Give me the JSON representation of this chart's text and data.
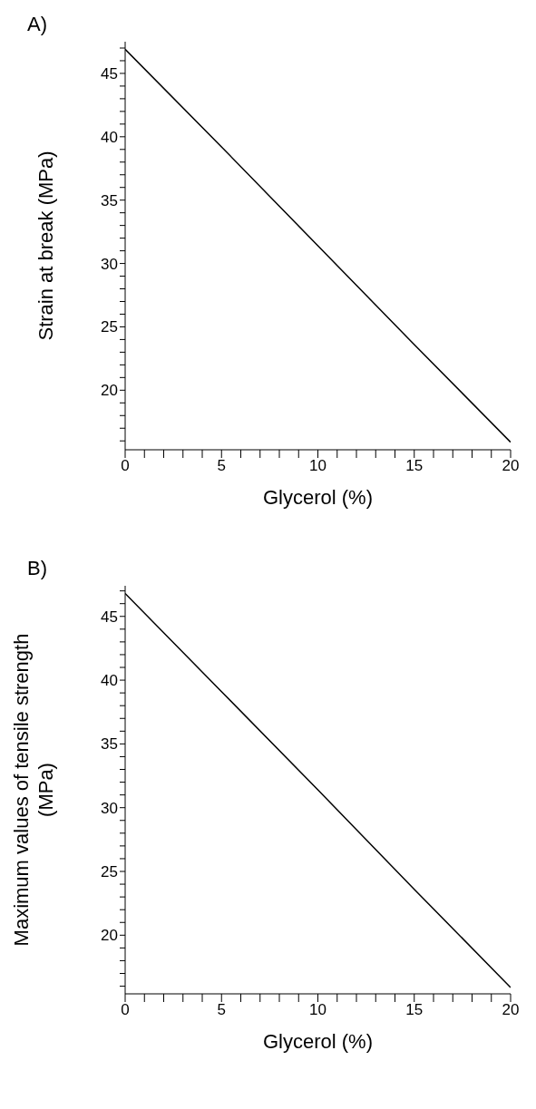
{
  "chart_data": [
    {
      "type": "line",
      "title": "A)",
      "xlabel": "Glycerol (%)",
      "ylabel": "Strain at break (MPa)",
      "x": [
        0,
        5,
        10,
        15,
        20
      ],
      "series": [
        {
          "color": "#000000",
          "values": [
            46.9,
            39.2,
            31.4,
            23.6,
            15.9
          ]
        }
      ],
      "xlim": [
        0,
        20
      ],
      "ylim": [
        15.3,
        47.5
      ],
      "xticks": [
        0,
        {
          "value": 1,
          "label": null
        },
        {
          "value": 2,
          "label": null
        },
        {
          "value": 3,
          "label": null
        },
        {
          "value": 4,
          "label": null
        },
        5,
        {
          "value": 6,
          "label": null
        },
        {
          "value": 7,
          "label": null
        },
        {
          "value": 8,
          "label": null
        },
        {
          "value": 9,
          "label": null
        },
        10,
        {
          "value": 11,
          "label": null
        },
        {
          "value": 12,
          "label": null
        },
        {
          "value": 13,
          "label": null
        },
        {
          "value": 14,
          "label": null
        },
        15,
        {
          "value": 16,
          "label": null
        },
        {
          "value": 17,
          "label": null
        },
        {
          "value": 18,
          "label": null
        },
        {
          "value": 19,
          "label": null
        },
        20
      ],
      "yticks": [
        {
          "value": 16,
          "label": null
        },
        {
          "value": 17,
          "label": null
        },
        {
          "value": 18,
          "label": null
        },
        {
          "value": 19,
          "label": null
        },
        20,
        {
          "value": 21,
          "label": null
        },
        {
          "value": 22,
          "label": null
        },
        {
          "value": 23,
          "label": null
        },
        {
          "value": 24,
          "label": null
        },
        25,
        {
          "value": 26,
          "label": null
        },
        {
          "value": 27,
          "label": null
        },
        {
          "value": 28,
          "label": null
        },
        {
          "value": 29,
          "label": null
        },
        30,
        {
          "value": 31,
          "label": null
        },
        {
          "value": 32,
          "label": null
        },
        {
          "value": 33,
          "label": null
        },
        {
          "value": 34,
          "label": null
        },
        35,
        {
          "value": 36,
          "label": null
        },
        {
          "value": 37,
          "label": null
        },
        {
          "value": 38,
          "label": null
        },
        {
          "value": 39,
          "label": null
        },
        40,
        {
          "value": 41,
          "label": null
        },
        {
          "value": 42,
          "label": null
        },
        {
          "value": 43,
          "label": null
        },
        {
          "value": 44,
          "label": null
        },
        45,
        {
          "value": 46,
          "label": null
        },
        {
          "value": 47,
          "label": null
        }
      ],
      "grid": false,
      "legend": false,
      "marker": "none",
      "line_style": "solid"
    },
    {
      "type": "line",
      "title": "B)",
      "xlabel": "Glycerol (%)",
      "ylabel": "Maximum values of tensile strength (MPa)",
      "x": [
        0,
        5,
        10,
        15,
        20
      ],
      "series": [
        {
          "color": "#000000",
          "values": [
            46.8,
            39.1,
            31.4,
            23.6,
            15.9
          ]
        }
      ],
      "xlim": [
        0,
        20
      ],
      "ylim": [
        15.4,
        47.4
      ],
      "xticks": [
        0,
        {
          "value": 1,
          "label": null
        },
        {
          "value": 2,
          "label": null
        },
        {
          "value": 3,
          "label": null
        },
        {
          "value": 4,
          "label": null
        },
        5,
        {
          "value": 6,
          "label": null
        },
        {
          "value": 7,
          "label": null
        },
        {
          "value": 8,
          "label": null
        },
        {
          "value": 9,
          "label": null
        },
        10,
        {
          "value": 11,
          "label": null
        },
        {
          "value": 12,
          "label": null
        },
        {
          "value": 13,
          "label": null
        },
        {
          "value": 14,
          "label": null
        },
        15,
        {
          "value": 16,
          "label": null
        },
        {
          "value": 17,
          "label": null
        },
        {
          "value": 18,
          "label": null
        },
        {
          "value": 19,
          "label": null
        },
        20
      ],
      "yticks": [
        {
          "value": 16,
          "label": null
        },
        {
          "value": 17,
          "label": null
        },
        {
          "value": 18,
          "label": null
        },
        {
          "value": 19,
          "label": null
        },
        20,
        {
          "value": 21,
          "label": null
        },
        {
          "value": 22,
          "label": null
        },
        {
          "value": 23,
          "label": null
        },
        {
          "value": 24,
          "label": null
        },
        25,
        {
          "value": 26,
          "label": null
        },
        {
          "value": 27,
          "label": null
        },
        {
          "value": 28,
          "label": null
        },
        {
          "value": 29,
          "label": null
        },
        30,
        {
          "value": 31,
          "label": null
        },
        {
          "value": 32,
          "label": null
        },
        {
          "value": 33,
          "label": null
        },
        {
          "value": 34,
          "label": null
        },
        35,
        {
          "value": 36,
          "label": null
        },
        {
          "value": 37,
          "label": null
        },
        {
          "value": 38,
          "label": null
        },
        {
          "value": 39,
          "label": null
        },
        40,
        {
          "value": 41,
          "label": null
        },
        {
          "value": 42,
          "label": null
        },
        {
          "value": 43,
          "label": null
        },
        {
          "value": 44,
          "label": null
        },
        45,
        {
          "value": 46,
          "label": null
        },
        {
          "value": 47,
          "label": null
        }
      ],
      "grid": false,
      "legend": false,
      "marker": "none",
      "line_style": "solid"
    }
  ]
}
